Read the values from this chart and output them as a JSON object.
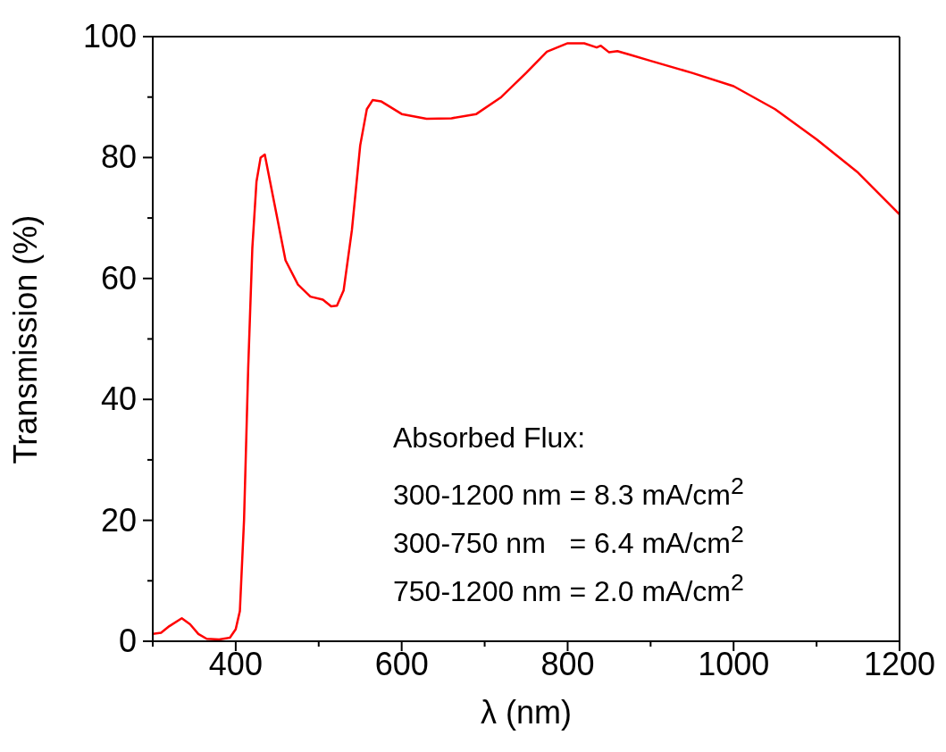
{
  "chart_data": {
    "type": "line",
    "xlabel": "λ (nm)",
    "ylabel": "Transmission (%)",
    "xlim": [
      300,
      1200
    ],
    "ylim": [
      0,
      100
    ],
    "xticks": [
      {
        "value": 300,
        "label": null
      },
      400,
      {
        "value": 500,
        "label": null
      },
      600,
      {
        "value": 700,
        "label": null
      },
      800,
      {
        "value": 900,
        "label": null
      },
      1000,
      {
        "value": 1100,
        "label": null
      },
      1200
    ],
    "yticks": [
      0,
      {
        "value": 10,
        "label": null
      },
      20,
      {
        "value": 30,
        "label": null
      },
      40,
      {
        "value": 50,
        "label": null
      },
      60,
      {
        "value": 70,
        "label": null
      },
      80,
      {
        "value": 90,
        "label": null
      },
      100
    ],
    "marker": "none",
    "line_style": "solid",
    "series": [
      {
        "color": "#ff0000",
        "x": [
          300,
          310,
          320,
          335,
          345,
          355,
          365,
          380,
          393,
          400,
          405,
          410,
          415,
          420,
          425,
          430,
          435,
          440,
          450,
          460,
          475,
          490,
          505,
          515,
          522,
          530,
          540,
          550,
          558,
          565,
          575,
          600,
          630,
          660,
          690,
          720,
          750,
          775,
          800,
          820,
          835,
          840,
          850,
          860,
          875,
          900,
          950,
          1000,
          1050,
          1100,
          1150,
          1200
        ],
        "values": [
          1.2,
          1.4,
          2.5,
          3.8,
          2.8,
          1.2,
          0.4,
          0.3,
          0.6,
          2,
          5,
          20,
          45,
          65,
          76,
          80,
          80.5,
          77,
          70,
          63,
          59,
          57,
          56.5,
          55.4,
          55.5,
          58,
          68,
          82,
          88,
          89.5,
          89.3,
          87.2,
          86.4,
          86.5,
          87.2,
          90,
          94,
          97.5,
          98.9,
          98.9,
          98.2,
          98.5,
          97.4,
          97.6,
          97,
          96,
          94,
          91.8,
          88,
          83,
          77.5,
          70.6
        ]
      }
    ],
    "annotations": [
      "Absorbed Flux:",
      "300-1200 nm = 8.3 mA/cm$^{2}$",
      "300-750 nm   = 6.4 mA/cm$^{2}$",
      "750-1200 nm = 2.0 mA/cm$^{2}$"
    ]
  }
}
